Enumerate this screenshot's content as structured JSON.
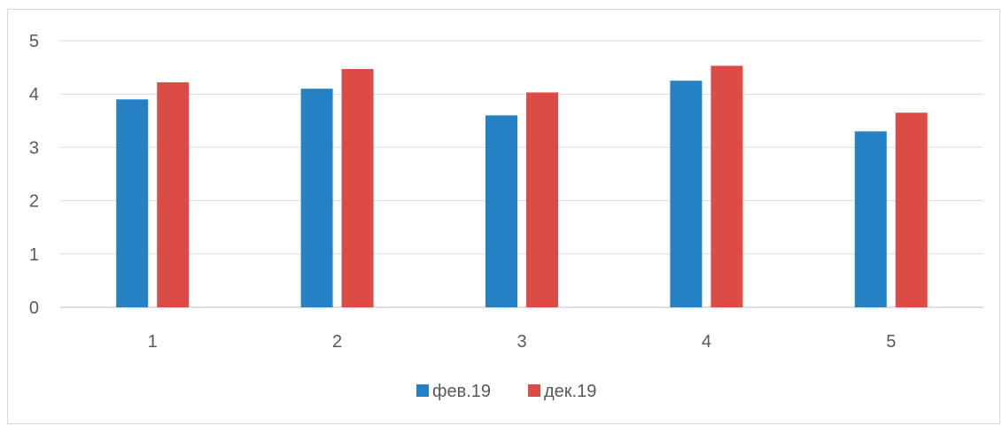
{
  "chart_data": {
    "type": "bar",
    "categories": [
      "1",
      "2",
      "3",
      "4",
      "5"
    ],
    "series": [
      {
        "name": "фев.19",
        "values": [
          3.9,
          4.1,
          3.6,
          4.25,
          3.3
        ],
        "color": "#2581c4"
      },
      {
        "name": "дек.19",
        "values": [
          4.22,
          4.47,
          4.03,
          4.53,
          3.65
        ],
        "color": "#dc4c47"
      }
    ],
    "yticks": [
      "0",
      "1",
      "2",
      "3",
      "4",
      "5"
    ],
    "ylim": [
      0,
      5
    ],
    "grid": true,
    "legend": "bottom-center",
    "gridColor": "#d9d9d9",
    "axisColor": "#bfbfbf"
  }
}
